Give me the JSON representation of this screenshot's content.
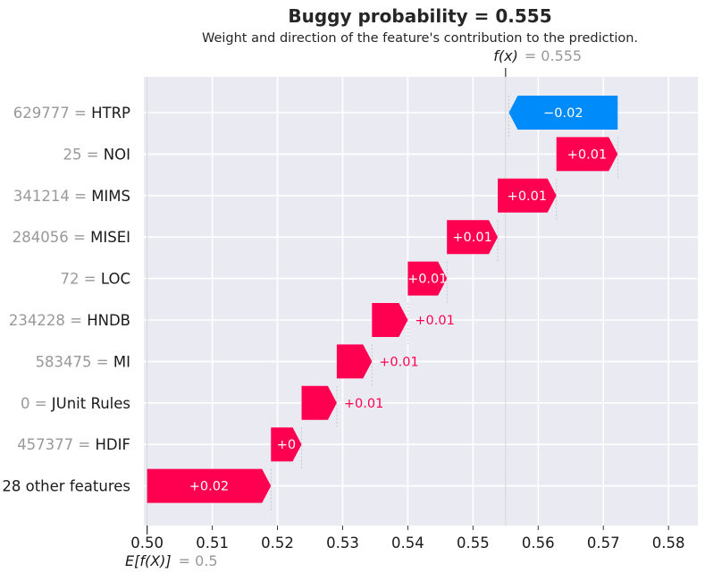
{
  "chart_data": {
    "type": "waterfall",
    "title": "Buggy probability = 0.555",
    "subtitle": "Weight and direction of the feature's contribution to the prediction.",
    "fx_label": "f(x)",
    "fx_value_text": "= 0.555",
    "fx_value": 0.555,
    "efx_label": "E[f(X)]",
    "efx_value_text": "= 0.5",
    "base_value": 0.5,
    "xlim": [
      0.4995,
      0.5845
    ],
    "x_ticks": [
      0.5,
      0.51,
      0.52,
      0.53,
      0.54,
      0.55,
      0.56,
      0.57,
      0.58
    ],
    "x_tick_labels": [
      "0.50",
      "0.51",
      "0.52",
      "0.53",
      "0.54",
      "0.55",
      "0.56",
      "0.57",
      "0.58"
    ],
    "rows": [
      {
        "value_text": "629777",
        "feature": "HTRP",
        "start": 0.5722,
        "end": 0.5555,
        "label": "−0.02",
        "label_inside": true
      },
      {
        "value_text": "25",
        "feature": "NOI",
        "start": 0.5628,
        "end": 0.5722,
        "label": "+0.01",
        "label_inside": true
      },
      {
        "value_text": "341214",
        "feature": "MIMS",
        "start": 0.5538,
        "end": 0.5628,
        "label": "+0.01",
        "label_inside": true
      },
      {
        "value_text": "284056",
        "feature": "MISEI",
        "start": 0.546,
        "end": 0.5538,
        "label": "+0.01",
        "label_inside": true
      },
      {
        "value_text": "72",
        "feature": "LOC",
        "start": 0.54,
        "end": 0.546,
        "label": "+0.01",
        "label_inside": true
      },
      {
        "value_text": "234228",
        "feature": "HNDB",
        "start": 0.5345,
        "end": 0.54,
        "label": "+0.01",
        "label_inside": false
      },
      {
        "value_text": "583475",
        "feature": "MI",
        "start": 0.5291,
        "end": 0.5345,
        "label": "+0.01",
        "label_inside": false
      },
      {
        "value_text": "0",
        "feature": "JUnit Rules",
        "start": 0.5237,
        "end": 0.5291,
        "label": "+0.01",
        "label_inside": false
      },
      {
        "value_text": "457377",
        "feature": "HDIF",
        "start": 0.519,
        "end": 0.5237,
        "label": "+0",
        "label_inside": true
      },
      {
        "value_text": "",
        "feature": "28 other features",
        "start": 0.5,
        "end": 0.519,
        "label": "+0.02",
        "label_inside": true
      }
    ],
    "colors": {
      "positive": "#ff0051",
      "negative": "#008bfb",
      "plot_background": "#eaeaf2",
      "grid": "#ffffff",
      "muted_text": "#999999",
      "text": "#1a1a1a"
    }
  }
}
